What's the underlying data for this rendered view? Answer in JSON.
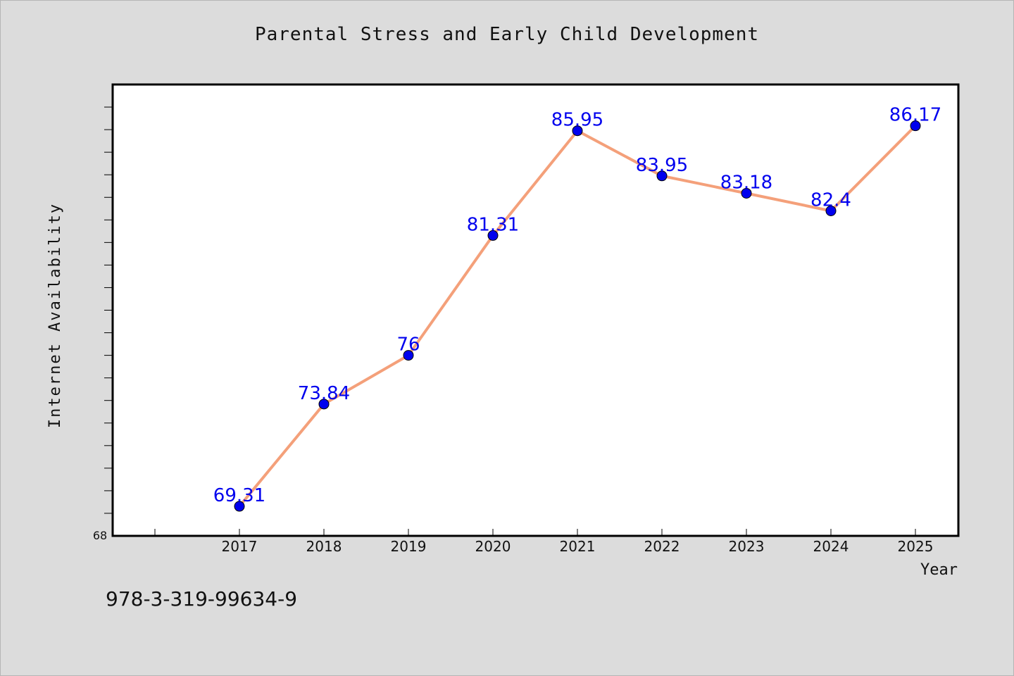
{
  "chart_data": {
    "type": "line",
    "title": "Parental Stress and Early Child Development",
    "xlabel": "Year",
    "ylabel": "Internet Availability",
    "categories": [
      "2017",
      "2018",
      "2019",
      "2020",
      "2021",
      "2022",
      "2023",
      "2024",
      "2025"
    ],
    "series": [
      {
        "values": [
          69.31,
          73.84,
          76,
          81.31,
          85.95,
          83.95,
          83.18,
          82.4,
          86.17
        ],
        "labels": [
          "69.31",
          "73.84",
          "76",
          "81.31",
          "85.95",
          "83.95",
          "83.18",
          "82.4",
          "86.17"
        ],
        "line_color": "#f4a07a",
        "marker_color": "#0000ee",
        "label_color": "#0000ee"
      }
    ],
    "y_tick_labels": [
      "68"
    ],
    "ylim": [
      68,
      88
    ],
    "grid": false
  },
  "footer": {
    "isbn": "978-3-319-99634-9"
  }
}
